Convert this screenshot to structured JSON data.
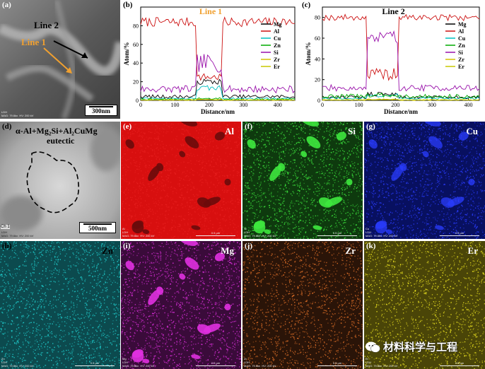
{
  "panels": {
    "a": {
      "label": "(a)",
      "line2": "Line 2",
      "line1": "Line 1",
      "scale": "300nm",
      "meta": "LDH\nMAG: 79.6kx  HV: 200 kV"
    },
    "b": {
      "label": "(b)",
      "title": "Line 1"
    },
    "c": {
      "label": "(c)",
      "title": "Line 2"
    },
    "d": {
      "label": "(d)",
      "caption_line1": "α-Al+Mg₂Si+Al₂CuMg",
      "caption_line2": "eutectic",
      "scale": "500nm",
      "ch": "Ch 1",
      "meta": "LDH\nMAG: 79.6kx  HV: 200 kV"
    }
  },
  "maps": [
    {
      "id": "e",
      "label": "(e)",
      "element": "Al",
      "corner": "Al",
      "color": "#e82020",
      "bg": "#d80f0f",
      "dark": "#6a0b0b",
      "text_color": "#ffffff",
      "meta": "LDH\nMAG: 79.6kx  HV: 200 kV",
      "scale": "0.5 µm"
    },
    {
      "id": "f",
      "label": "(f)",
      "element": "Si",
      "corner": "Si",
      "color": "#3ee83e",
      "bg": "#0e3a0e",
      "dark": "#0c2a0c",
      "text_color": "#ffffff",
      "meta": "LDH\nMAG: 79.6kx  HV: 200 kV",
      "scale": "0.5 µm"
    },
    {
      "id": "g",
      "label": "(g)",
      "element": "Cu",
      "corner": "Cu",
      "color": "#2a3cff",
      "bg": "#081060",
      "dark": "#060c40",
      "text_color": "#ffffff",
      "meta": "LDH\nMAG: 79.6kx  HV: 200 kV",
      "scale": "0.5 µm"
    },
    {
      "id": "h",
      "label": "(h)",
      "element": "Zn",
      "corner": "Zn",
      "color": "#20d0d0",
      "bg": "#0c4a4e",
      "dark": "#093438",
      "text_color": "#000000",
      "meta": "LDH\nMAG: 79.6kx  HV: 200 kV",
      "scale": "0.5 µm"
    },
    {
      "id": "i",
      "label": "(i)",
      "element": "Mg",
      "corner": "Mg",
      "color": "#e030e0",
      "bg": "#3a0b3a",
      "dark": "#2a082a",
      "text_color": "#ffffff",
      "meta": "LDH\nMAG: 79.6kx  HV: 200 kV",
      "scale": "0.5 µm"
    },
    {
      "id": "j",
      "label": "(j)",
      "element": "Zr",
      "corner": "Zr",
      "color": "#e07028",
      "bg": "#2a1408",
      "dark": "#1e0e05",
      "text_color": "#ffffff",
      "meta": "LDH\nMAG: 79.6kx  HV: 200 kV",
      "scale": "0.5 µm"
    },
    {
      "id": "k",
      "label": "(k)",
      "element": "Er",
      "corner": "Er",
      "color": "#e8e020",
      "bg": "#4a4508",
      "dark": "#2e2c06",
      "text_color": "#ffffff",
      "meta": "LDH\nMAG: 79.6kx  HV: 200 kV",
      "scale": "0.5 µm"
    }
  ],
  "watermark": "材料科学与工程",
  "chart_data": [
    {
      "type": "line",
      "title": "Line 1",
      "xlabel": "Distance/nm",
      "ylabel": "Atom/%",
      "xlim": [
        0,
        450
      ],
      "ylim": [
        0,
        100
      ],
      "xticks": [
        0,
        100,
        200,
        300,
        400
      ],
      "yticks": [
        0,
        20,
        40,
        60,
        80
      ],
      "legend": [
        "Mg",
        "Al",
        "Cu",
        "Zn",
        "Si",
        "Zr",
        "Er"
      ],
      "colors": [
        "#000000",
        "#cc1111",
        "#00c0c0",
        "#00aa00",
        "#9911aa",
        "#d4c000",
        "#c8c800"
      ],
      "region": [
        165,
        235
      ],
      "series": [
        {
          "name": "Al",
          "base": 84,
          "noise": 5,
          "inside": 25,
          "inside_noise": 4
        },
        {
          "name": "Si",
          "base": 12,
          "noise": 4,
          "inside": 40,
          "inside_noise": 10
        },
        {
          "name": "Mg",
          "base": 4,
          "noise": 2,
          "inside": 20,
          "inside_noise": 3
        },
        {
          "name": "Cu",
          "base": 2,
          "noise": 1,
          "inside": 13,
          "inside_noise": 3
        },
        {
          "name": "Zn",
          "base": 1,
          "noise": 1,
          "inside": 2,
          "inside_noise": 1
        },
        {
          "name": "Zr",
          "base": 0.5,
          "noise": 0.4,
          "inside": 1,
          "inside_noise": 0.5
        },
        {
          "name": "Er",
          "base": 0.3,
          "noise": 0.3,
          "inside": 0.6,
          "inside_noise": 0.3
        }
      ]
    },
    {
      "type": "line",
      "title": "Line 2",
      "xlabel": "Distance/nm",
      "ylabel": "Atom/%",
      "xlim": [
        0,
        430
      ],
      "ylim": [
        0,
        90
      ],
      "xticks": [
        0,
        100,
        200,
        300,
        400
      ],
      "yticks": [
        0,
        20,
        40,
        60,
        80
      ],
      "legend": [
        "Mg",
        "Al",
        "Cu",
        "Zn",
        "Si",
        "Zr",
        "Er"
      ],
      "colors": [
        "#000000",
        "#cc1111",
        "#00c0c0",
        "#00aa00",
        "#9911aa",
        "#d4c000",
        "#c8c800"
      ],
      "region": [
        120,
        210
      ],
      "series": [
        {
          "name": "Al",
          "base": 80,
          "noise": 3,
          "inside": 25,
          "inside_noise": 6
        },
        {
          "name": "Si",
          "base": 12,
          "noise": 3,
          "inside": 60,
          "inside_noise": 8
        },
        {
          "name": "Mg",
          "base": 3,
          "noise": 1.5,
          "inside": 6,
          "inside_noise": 2
        },
        {
          "name": "Cu",
          "base": 2,
          "noise": 1,
          "inside": 5,
          "inside_noise": 2
        },
        {
          "name": "Zn",
          "base": 4,
          "noise": 2,
          "inside": 5,
          "inside_noise": 2
        },
        {
          "name": "Zr",
          "base": 0.5,
          "noise": 0.4,
          "inside": 1,
          "inside_noise": 0.5
        },
        {
          "name": "Er",
          "base": 0.3,
          "noise": 0.3,
          "inside": 0.6,
          "inside_noise": 0.3
        }
      ]
    }
  ]
}
